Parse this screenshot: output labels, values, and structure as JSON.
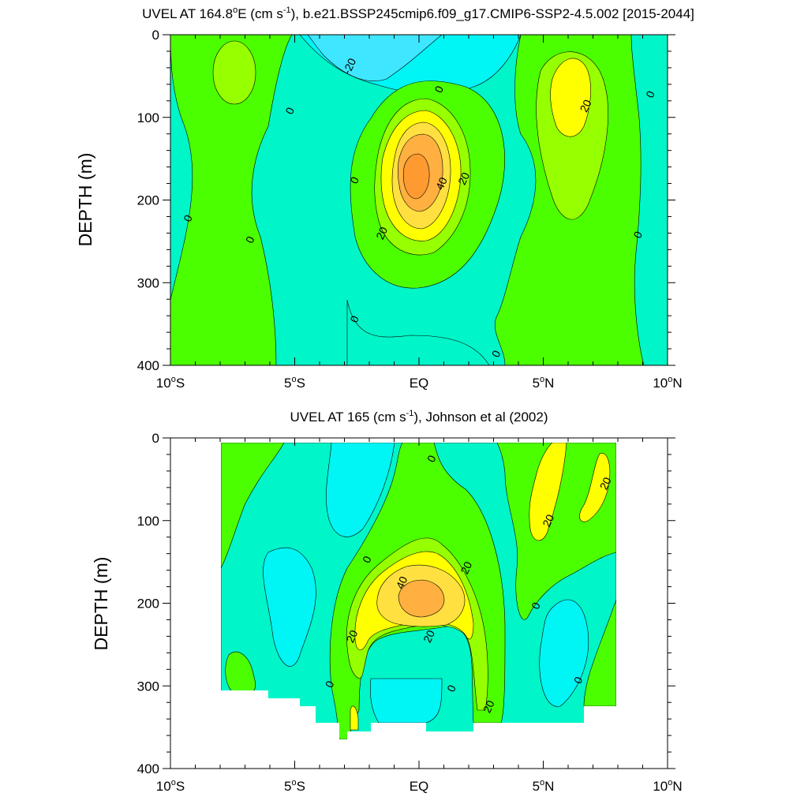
{
  "chart_data": [
    {
      "type": "contour",
      "title_prefix": "UVEL AT 164.8",
      "title_deg": "o",
      "title_mid": "E (cm s",
      "title_exp": "-1",
      "title_suffix": "), b.e21.BSSP245cmip6.f09_g17.CMIP6-SSP2-4.5.002 [2015-2044]",
      "ylabel": "DEPTH (m)",
      "xlim": [
        -10,
        10
      ],
      "ylim": [
        0,
        400
      ],
      "ytick_values": [
        0,
        100,
        200,
        300,
        400
      ],
      "ytick_labels": [
        "0",
        "100",
        "200",
        "300",
        "400"
      ],
      "xticks": [
        {
          "value": -10,
          "num": "10",
          "dir": "S"
        },
        {
          "value": -5,
          "num": "5",
          "dir": "S"
        },
        {
          "value": 0,
          "num": "EQ",
          "dir": ""
        },
        {
          "value": 5,
          "num": "5",
          "dir": "N"
        },
        {
          "value": 10,
          "num": "10",
          "dir": "N"
        }
      ],
      "contour_interval": 10,
      "contour_labels": [
        {
          "text": "-20",
          "x": -2.8,
          "depth": 38
        },
        {
          "text": "0",
          "x": 0.8,
          "depth": 66
        },
        {
          "text": "0",
          "x": -5.2,
          "depth": 92
        },
        {
          "text": "20",
          "x": 6.7,
          "depth": 86
        },
        {
          "text": "0",
          "x": 9.3,
          "depth": 72
        },
        {
          "text": "0",
          "x": -2.6,
          "depth": 176
        },
        {
          "text": "40",
          "x": 0.9,
          "depth": 180
        },
        {
          "text": "20",
          "x": 1.8,
          "depth": 174
        },
        {
          "text": "0",
          "x": -9.3,
          "depth": 222
        },
        {
          "text": "0",
          "x": -6.8,
          "depth": 248
        },
        {
          "text": "20",
          "x": -1.5,
          "depth": 240
        },
        {
          "text": "0",
          "x": 8.8,
          "depth": 242
        },
        {
          "text": "0",
          "x": -2.6,
          "depth": 344
        },
        {
          "text": "0",
          "x": 3.1,
          "depth": 386
        }
      ]
    },
    {
      "type": "contour",
      "title_prefix": "UVEL AT 165",
      "title_deg": "",
      "title_mid": " (cm s",
      "title_exp": "-1",
      "title_suffix": "), Johnson et al (2002)",
      "ylabel": "DEPTH (m)",
      "xlim": [
        -10,
        10
      ],
      "ylim": [
        0,
        400
      ],
      "ytick_values": [
        0,
        100,
        200,
        300,
        400
      ],
      "ytick_labels": [
        "0",
        "100",
        "200",
        "300",
        "400"
      ],
      "xticks": [
        {
          "value": -10,
          "num": "10",
          "dir": "S"
        },
        {
          "value": -5,
          "num": "5",
          "dir": "S"
        },
        {
          "value": 0,
          "num": "EQ",
          "dir": ""
        },
        {
          "value": 5,
          "num": "5",
          "dir": "N"
        },
        {
          "value": 10,
          "num": "10",
          "dir": "N"
        }
      ],
      "data_extent": {
        "x": [
          -8,
          8
        ],
        "depth": [
          0,
          350
        ]
      },
      "contour_interval": 10,
      "contour_labels": [
        {
          "text": "0",
          "x": 0.5,
          "depth": 25
        },
        {
          "text": "20",
          "x": 7.5,
          "depth": 55
        },
        {
          "text": "20",
          "x": 5.2,
          "depth": 100
        },
        {
          "text": "0",
          "x": -2.1,
          "depth": 147
        },
        {
          "text": "20",
          "x": 1.9,
          "depth": 157
        },
        {
          "text": "40",
          "x": -0.7,
          "depth": 175
        },
        {
          "text": "0",
          "x": 4.7,
          "depth": 203
        },
        {
          "text": "20",
          "x": -2.7,
          "depth": 240
        },
        {
          "text": "20",
          "x": 0.4,
          "depth": 240
        },
        {
          "text": "0",
          "x": -3.6,
          "depth": 298
        },
        {
          "text": "0",
          "x": 1.3,
          "depth": 303
        },
        {
          "text": "0",
          "x": 6.4,
          "depth": 293
        },
        {
          "text": "20",
          "x": 2.8,
          "depth": 325
        }
      ]
    }
  ],
  "palette": {
    "-20": "#3fe6ff",
    "-10": "#00f5f5",
    "0": "#00f5c8",
    "10": "#4cff00",
    "20": "#96ff00",
    "30": "#ffff00",
    "40": "#ffe040",
    "50": "#ffb040",
    "60": "#ff9a30"
  }
}
